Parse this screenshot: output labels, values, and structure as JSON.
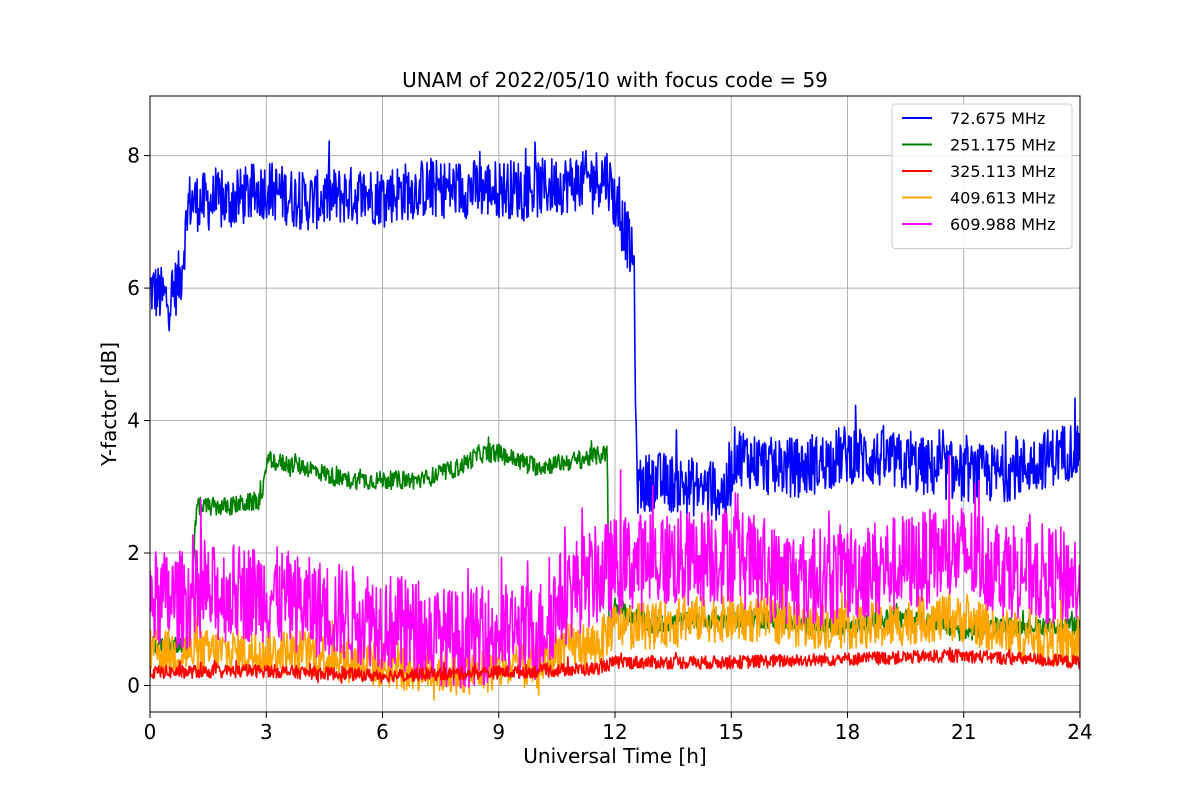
{
  "chart_data": {
    "type": "line",
    "title": "UNAM of 2022/05/10 with focus code = 59",
    "xlabel": "Universal Time [h]",
    "ylabel": "Y-factor [dB]",
    "xlim": [
      0,
      24
    ],
    "ylim": [
      -0.4,
      8.9
    ],
    "xticks": [
      0,
      3,
      6,
      9,
      12,
      15,
      18,
      21,
      24
    ],
    "yticks": [
      0,
      2,
      4,
      6,
      8
    ],
    "grid": true,
    "legend_position": "top-right",
    "series": [
      {
        "name": " 72.675 MHz",
        "color": "#0000ff",
        "x": [
          0,
          0.5,
          0.8,
          1.0,
          2.0,
          3.0,
          4.0,
          5.0,
          6.0,
          7.0,
          8.0,
          9.0,
          10.0,
          11.0,
          11.8,
          12.0,
          12.3,
          12.5,
          12.55,
          12.6,
          13.0,
          14.0,
          14.9,
          15.1,
          16.0,
          17.0,
          18.0,
          19.0,
          20.0,
          21.0,
          22.0,
          23.0,
          24.0
        ],
        "y": [
          6.0,
          5.8,
          6.2,
          7.3,
          7.3,
          7.5,
          7.3,
          7.4,
          7.4,
          7.5,
          7.5,
          7.5,
          7.5,
          7.6,
          7.7,
          7.3,
          6.8,
          6.3,
          3.2,
          3.0,
          3.1,
          3.0,
          2.9,
          3.5,
          3.3,
          3.3,
          3.5,
          3.4,
          3.3,
          3.2,
          3.2,
          3.4,
          3.6
        ],
        "noise": 0.45
      },
      {
        "name": "251.175 MHz",
        "color": "#008000",
        "x": [
          0,
          1.0,
          1.2,
          2.0,
          2.9,
          3.0,
          4.0,
          5.0,
          6.0,
          7.0,
          8.0,
          8.5,
          9.0,
          10.0,
          11.0,
          11.8,
          11.85,
          12.0,
          13.0,
          14.0,
          15.0,
          16.0,
          17.0,
          18.0,
          19.0,
          20.0,
          21.0,
          22.0,
          23.0,
          24.0
        ],
        "y": [
          0.6,
          0.6,
          2.7,
          2.7,
          2.8,
          3.4,
          3.3,
          3.1,
          3.1,
          3.1,
          3.3,
          3.5,
          3.5,
          3.3,
          3.4,
          3.5,
          0.7,
          1.2,
          0.9,
          1.0,
          1.0,
          1.0,
          0.9,
          0.9,
          1.0,
          1.0,
          0.8,
          0.9,
          0.9,
          0.9
        ],
        "noise": 0.14
      },
      {
        "name": "409.613 MHz",
        "color": "#ffa500",
        "x": [
          0,
          2.0,
          4.0,
          6.0,
          8.0,
          10.0,
          10.7,
          11.5,
          12.0,
          13.0,
          14.0,
          15.0,
          16.0,
          17.0,
          18.0,
          19.0,
          20.0,
          21.0,
          22.0,
          23.0,
          24.0
        ],
        "y": [
          0.5,
          0.5,
          0.5,
          0.3,
          0.2,
          0.3,
          0.6,
          0.6,
          0.9,
          0.9,
          1.0,
          1.0,
          1.0,
          0.9,
          0.9,
          0.9,
          1.0,
          1.0,
          0.8,
          0.7,
          0.6
        ],
        "noise": 0.35
      },
      {
        "name": "609.988 MHz",
        "color": "#ff00ff",
        "x": [
          0,
          1.0,
          2.0,
          3.0,
          4.0,
          5.0,
          6.0,
          7.0,
          8.0,
          9.0,
          10.0,
          10.6,
          11.0,
          12.0,
          13.0,
          14.0,
          15.0,
          16.0,
          17.0,
          18.0,
          19.0,
          20.0,
          21.0,
          22.0,
          23.0,
          24.0
        ],
        "y": [
          1.3,
          1.3,
          1.4,
          1.4,
          1.2,
          1.1,
          1.0,
          0.8,
          0.7,
          0.8,
          0.8,
          1.3,
          1.5,
          1.8,
          1.9,
          1.9,
          2.0,
          1.7,
          1.6,
          1.7,
          1.8,
          1.9,
          2.0,
          1.8,
          1.7,
          1.6
        ],
        "noise": 0.75
      },
      {
        "name": "325.113 MHz",
        "color": "#ff0000",
        "x": [
          0,
          3.0,
          6.0,
          9.0,
          11.5,
          12.0,
          15.0,
          18.0,
          21.0,
          24.0
        ],
        "y": [
          0.2,
          0.22,
          0.15,
          0.2,
          0.25,
          0.35,
          0.35,
          0.4,
          0.45,
          0.35
        ],
        "noise": 0.1
      }
    ],
    "legend_order": [
      " 72.675 MHz",
      "251.175 MHz",
      "325.113 MHz",
      "409.613 MHz",
      "609.988 MHz"
    ]
  }
}
